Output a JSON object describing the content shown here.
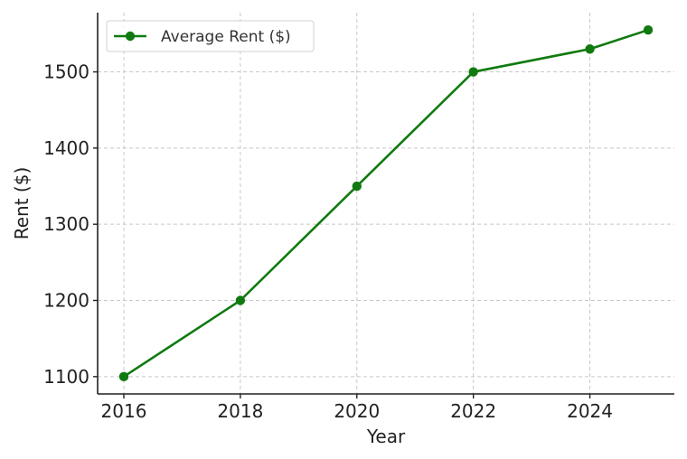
{
  "chart_data": {
    "type": "line",
    "title": "",
    "xlabel": "Year",
    "ylabel": "Rent ($)",
    "x": [
      2016,
      2018,
      2020,
      2022,
      2024,
      2025
    ],
    "series": [
      {
        "name": "Average Rent ($)",
        "values": [
          1100,
          1200,
          1350,
          1500,
          1530,
          1555
        ],
        "color": "#107a10",
        "marker": "circle"
      }
    ],
    "xticks": [
      2016,
      2018,
      2020,
      2022,
      2024
    ],
    "yticks": [
      1100,
      1200,
      1300,
      1400,
      1500
    ],
    "xlim": [
      2015.55,
      2025.45
    ],
    "ylim": [
      1077.25,
      1577.75
    ],
    "grid": true,
    "legend": "top-left"
  }
}
